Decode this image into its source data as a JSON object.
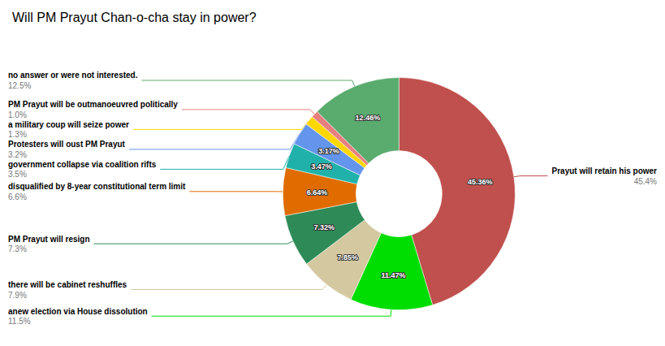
{
  "chart_data": {
    "type": "pie",
    "title": "Will PM Prayut Chan-o-cha stay in power?",
    "categories": [
      "Prayut will retain his power",
      "anew election via House dissolution",
      "there will be cabinet reshuffles",
      "PM Prayut will resign",
      "disqualified by 8-year constitutional term limit",
      "government collapse via coalition rifts",
      "Protesters will oust PM Prayut",
      "a military coup will seize power",
      "PM Prayut will be outmanoeuvred politically",
      "no answer or were not interested."
    ],
    "values": [
      45.36,
      11.47,
      7.85,
      7.32,
      6.64,
      3.47,
      3.17,
      1.3,
      1.0,
      12.46
    ],
    "value_labels": [
      "45.36%",
      "11.47%",
      "7.85%",
      "7.32%",
      "6.64%",
      "3.47%",
      "3.17%",
      null,
      null,
      "12.46%"
    ],
    "data_labels": true,
    "annotations": [
      "45.4%",
      "11.5%",
      "7.9%",
      "7.3%",
      "6.6%",
      "3.5%",
      "3.2%",
      "1.3%",
      "1.0%",
      "12.5%"
    ],
    "colors": [
      "#c0504d",
      "#00dd00",
      "#d4c8a0",
      "#2e8b57",
      "#e06c00",
      "#20b2aa",
      "#6495ed",
      "#ffd700",
      "#e88080",
      "#5aab6e"
    ]
  }
}
